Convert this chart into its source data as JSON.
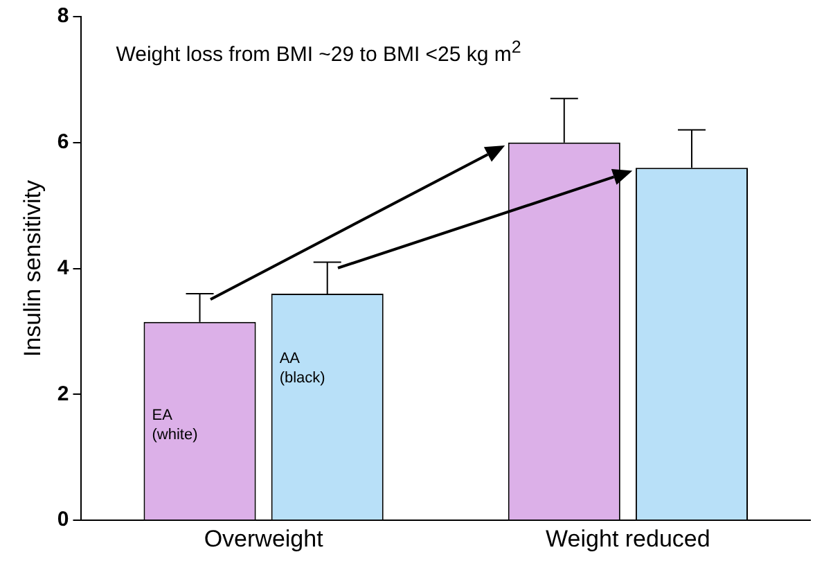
{
  "chart_data": {
    "type": "bar",
    "title": "Weight loss from BMI ~29 to BMI <25 kg m$^{2}$",
    "ylabel": "Insulin sensitivity",
    "categories": [
      "Overweight",
      "Weight reduced"
    ],
    "series": [
      {
        "name": "EA (white)",
        "color": "#dcb0e8",
        "values": [
          3.15,
          6.0
        ],
        "errors": [
          [
            3.15,
            3.6
          ],
          [
            6.0,
            6.7
          ]
        ]
      },
      {
        "name": "AA (black)",
        "color": "#b8e0f8",
        "values": [
          3.6,
          5.6
        ],
        "errors": [
          [
            3.6,
            4.1
          ],
          [
            5.6,
            6.2
          ]
        ]
      }
    ],
    "ylim": [
      0,
      8
    ],
    "yticks": [
      0,
      2,
      4,
      6,
      8
    ],
    "grid": false,
    "legend": false
  }
}
